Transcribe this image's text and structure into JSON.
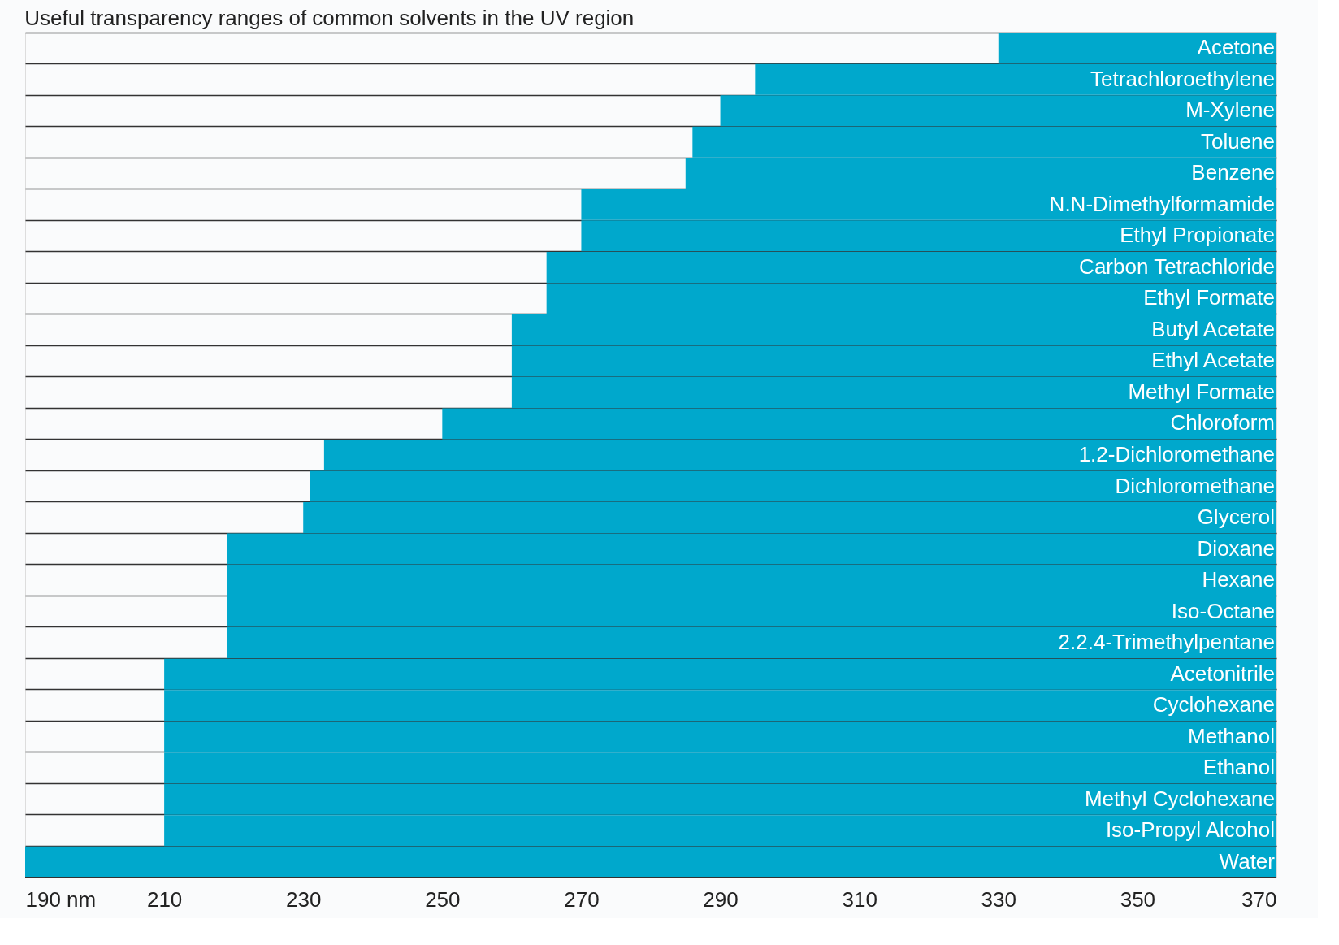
{
  "chart_data": {
    "type": "bar",
    "orientation": "horizontal",
    "title": "Useful transparency ranges of common solvents in the UV region",
    "categories": [
      "Acetone",
      "Tetrachloroethylene",
      "M-Xylene",
      "Toluene",
      "Benzene",
      "N.N-Dimethylformamide",
      "Ethyl Propionate",
      "Carbon Tetrachloride",
      "Ethyl Formate",
      "Butyl Acetate",
      "Ethyl Acetate",
      "Methyl Formate",
      "Chloroform",
      "1.2-Dichloromethane",
      "Dichloromethane",
      "Glycerol",
      "Dioxane",
      "Hexane",
      "Iso-Octane",
      "2.2.4-Trimethylpentane",
      "Acetonitrile",
      "Cyclohexane",
      "Methanol",
      "Ethanol",
      "Methyl Cyclohexane",
      "Iso-Propyl Alcohol",
      "Water"
    ],
    "base": [
      330,
      295,
      290,
      286,
      285,
      270,
      270,
      265,
      265,
      260,
      260,
      260,
      250,
      233,
      231,
      230,
      219,
      219,
      219,
      219,
      210,
      210,
      210,
      210,
      210,
      210,
      190
    ],
    "values": [
      40,
      75,
      80,
      84,
      85,
      100,
      100,
      105,
      105,
      110,
      110,
      110,
      120,
      137,
      139,
      140,
      151,
      151,
      151,
      151,
      160,
      160,
      160,
      160,
      160,
      160,
      180
    ],
    "color": "#00a8cc",
    "xlim": [
      190,
      370
    ],
    "xticks": [
      {
        "value": 190,
        "label": "190 nm"
      },
      210,
      230,
      250,
      270,
      290,
      310,
      330,
      350,
      370
    ],
    "grid": "y",
    "tick_labels": "x"
  }
}
